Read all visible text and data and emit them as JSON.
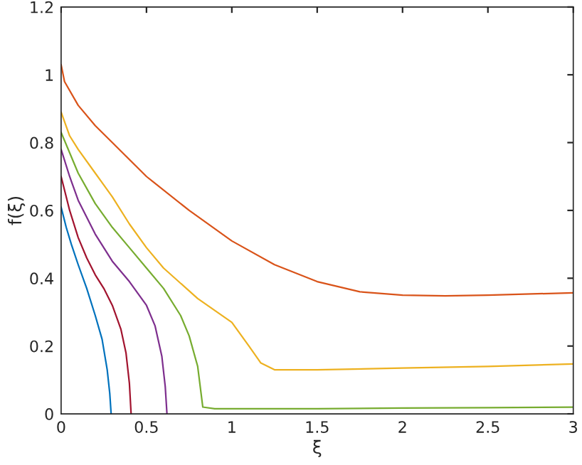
{
  "chart_data": {
    "type": "line",
    "xlabel": "ξ",
    "ylabel": "f(ξ)",
    "xlim": [
      0,
      3
    ],
    "ylim": [
      0,
      1.2
    ],
    "xticks": [
      0,
      0.5,
      1,
      1.5,
      2,
      2.5,
      3
    ],
    "yticks": [
      0,
      0.2,
      0.4,
      0.6,
      0.8,
      1,
      1.2
    ],
    "grid": false,
    "legend": false,
    "series": [
      {
        "color": "#0072bd",
        "x": [
          0,
          0.03,
          0.06,
          0.1,
          0.15,
          0.2,
          0.24,
          0.27,
          0.285,
          0.293
        ],
        "values": [
          0.61,
          0.55,
          0.5,
          0.44,
          0.37,
          0.29,
          0.22,
          0.13,
          0.06,
          0.0
        ]
      },
      {
        "color": "#d95319",
        "x": [
          0,
          0.02,
          0.1,
          0.2,
          0.3,
          0.5,
          0.75,
          1,
          1.25,
          1.5,
          1.75,
          2,
          2.25,
          2.5,
          3
        ],
        "values": [
          1.03,
          0.98,
          0.91,
          0.85,
          0.8,
          0.7,
          0.6,
          0.51,
          0.44,
          0.39,
          0.36,
          0.35,
          0.348,
          0.35,
          0.357
        ]
      },
      {
        "color": "#edb120",
        "x": [
          0,
          0.05,
          0.1,
          0.2,
          0.3,
          0.4,
          0.5,
          0.6,
          0.8,
          1.0,
          1.1,
          1.17,
          1.25,
          1.5,
          2,
          2.5,
          3
        ],
        "values": [
          0.89,
          0.82,
          0.78,
          0.71,
          0.64,
          0.56,
          0.49,
          0.43,
          0.34,
          0.27,
          0.2,
          0.15,
          0.13,
          0.13,
          0.135,
          0.14,
          0.147
        ]
      },
      {
        "color": "#7e2f8e",
        "x": [
          0,
          0.05,
          0.1,
          0.2,
          0.3,
          0.4,
          0.5,
          0.55,
          0.59,
          0.61,
          0.62
        ],
        "values": [
          0.78,
          0.7,
          0.63,
          0.53,
          0.45,
          0.39,
          0.32,
          0.26,
          0.17,
          0.08,
          0.0
        ]
      },
      {
        "color": "#77ac30",
        "x": [
          0,
          0.1,
          0.2,
          0.3,
          0.4,
          0.5,
          0.6,
          0.7,
          0.75,
          0.8,
          0.83,
          0.9,
          1.5,
          2,
          2.5,
          3
        ],
        "values": [
          0.83,
          0.71,
          0.62,
          0.55,
          0.49,
          0.43,
          0.37,
          0.29,
          0.23,
          0.14,
          0.02,
          0.015,
          0.015,
          0.017,
          0.018,
          0.02
        ]
      },
      {
        "color": "#a2142f",
        "x": [
          0,
          0.05,
          0.1,
          0.15,
          0.2,
          0.25,
          0.3,
          0.35,
          0.38,
          0.4,
          0.41
        ],
        "values": [
          0.7,
          0.6,
          0.52,
          0.46,
          0.41,
          0.37,
          0.32,
          0.25,
          0.18,
          0.09,
          0.0
        ]
      }
    ]
  }
}
